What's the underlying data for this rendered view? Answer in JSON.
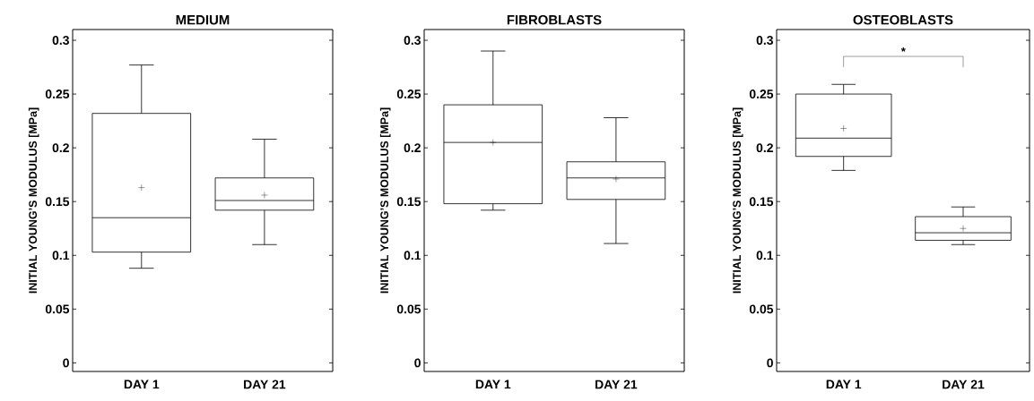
{
  "chart_data": [
    {
      "type": "box",
      "title": "MEDIUM",
      "ylabel": "INITIAL YOUNG’S MODULUS [MPa]",
      "categories": [
        "DAY 1",
        "DAY 21"
      ],
      "boxes": [
        {
          "low": 0.088,
          "q1": 0.103,
          "median": 0.135,
          "q3": 0.232,
          "high": 0.277,
          "mean": 0.163
        },
        {
          "low": 0.11,
          "q1": 0.142,
          "median": 0.151,
          "q3": 0.172,
          "high": 0.208,
          "mean": 0.156
        }
      ],
      "ylim": [
        -0.008,
        0.31
      ],
      "yticks": [
        0,
        0.05,
        0.1,
        0.15,
        0.2,
        0.25,
        0.3
      ]
    },
    {
      "type": "box",
      "title": "FIBROBLASTS",
      "ylabel": "INITIAL YOUNG’S MODULUS [MPa]",
      "categories": [
        "DAY 1",
        "DAY 21"
      ],
      "boxes": [
        {
          "low": 0.142,
          "q1": 0.148,
          "median": 0.205,
          "q3": 0.24,
          "high": 0.29,
          "mean": 0.205
        },
        {
          "low": 0.111,
          "q1": 0.152,
          "median": 0.172,
          "q3": 0.187,
          "high": 0.228,
          "mean": 0.171
        }
      ],
      "ylim": [
        -0.008,
        0.31
      ],
      "yticks": [
        0,
        0.05,
        0.1,
        0.15,
        0.2,
        0.25,
        0.3
      ]
    },
    {
      "type": "box",
      "title": "OSTEOBLASTS",
      "ylabel": "INITIAL YOUNG’S MODULUS [MPa]",
      "categories": [
        "DAY 1",
        "DAY 21"
      ],
      "boxes": [
        {
          "low": 0.179,
          "q1": 0.192,
          "median": 0.209,
          "q3": 0.25,
          "high": 0.259,
          "mean": 0.218
        },
        {
          "low": 0.11,
          "q1": 0.114,
          "median": 0.121,
          "q3": 0.136,
          "high": 0.145,
          "mean": 0.125
        }
      ],
      "ylim": [
        -0.008,
        0.31
      ],
      "yticks": [
        0,
        0.05,
        0.1,
        0.15,
        0.2,
        0.25,
        0.3
      ],
      "annotations": [
        "*"
      ]
    }
  ]
}
